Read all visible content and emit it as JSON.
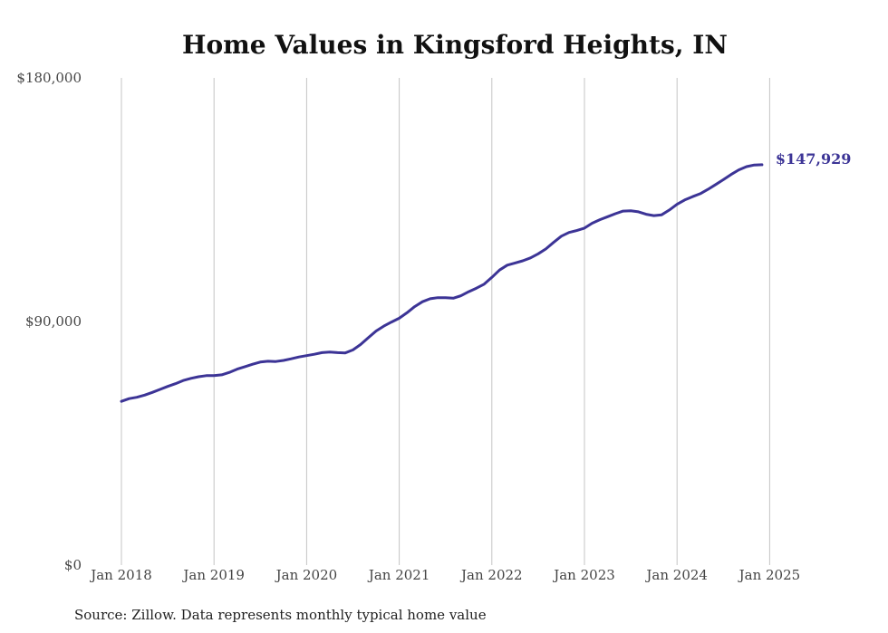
{
  "chart_data": {
    "type": "line",
    "title": "Home Values in Kingsford Heights, IN",
    "xlabel": "",
    "ylabel": "",
    "ylim": [
      0,
      180000
    ],
    "yticks": [
      {
        "value": 0,
        "label": "$0"
      },
      {
        "value": 90000,
        "label": "$90,000"
      },
      {
        "value": 180000,
        "label": "$180,000"
      }
    ],
    "xlim": [
      "2018-01",
      "2025-04"
    ],
    "xticks": [
      {
        "value": "2018-01",
        "label": "Jan 2018"
      },
      {
        "value": "2019-01",
        "label": "Jan 2019"
      },
      {
        "value": "2020-01",
        "label": "Jan 2020"
      },
      {
        "value": "2021-01",
        "label": "Jan 2021"
      },
      {
        "value": "2022-01",
        "label": "Jan 2022"
      },
      {
        "value": "2023-01",
        "label": "Jan 2023"
      },
      {
        "value": "2024-01",
        "label": "Jan 2024"
      },
      {
        "value": "2025-01",
        "label": "Jan 2025"
      }
    ],
    "grid": {
      "vertical": true,
      "horizontal": false
    },
    "line_color": "#3c3496",
    "end_label": "$147,929",
    "series": [
      {
        "points": [
          [
            "2018-01",
            60500
          ],
          [
            "2018-02",
            61500
          ],
          [
            "2018-03",
            62000
          ],
          [
            "2018-04",
            62800
          ],
          [
            "2018-05",
            63800
          ],
          [
            "2018-06",
            64900
          ],
          [
            "2018-07",
            66000
          ],
          [
            "2018-08",
            67000
          ],
          [
            "2018-09",
            68200
          ],
          [
            "2018-10",
            69000
          ],
          [
            "2018-11",
            69600
          ],
          [
            "2018-12",
            70000
          ],
          [
            "2019-01",
            70000
          ],
          [
            "2019-02",
            70300
          ],
          [
            "2019-03",
            71200
          ],
          [
            "2019-04",
            72400
          ],
          [
            "2019-05",
            73300
          ],
          [
            "2019-06",
            74200
          ],
          [
            "2019-07",
            75000
          ],
          [
            "2019-08",
            75300
          ],
          [
            "2019-09",
            75200
          ],
          [
            "2019-10",
            75600
          ],
          [
            "2019-11",
            76200
          ],
          [
            "2019-12",
            76900
          ],
          [
            "2020-01",
            77400
          ],
          [
            "2020-02",
            77900
          ],
          [
            "2020-03",
            78500
          ],
          [
            "2020-04",
            78700
          ],
          [
            "2020-05",
            78500
          ],
          [
            "2020-06",
            78400
          ],
          [
            "2020-07",
            79500
          ],
          [
            "2020-08",
            81500
          ],
          [
            "2020-09",
            84000
          ],
          [
            "2020-10",
            86500
          ],
          [
            "2020-11",
            88300
          ],
          [
            "2020-12",
            89800
          ],
          [
            "2021-01",
            91200
          ],
          [
            "2021-02",
            93200
          ],
          [
            "2021-03",
            95500
          ],
          [
            "2021-04",
            97300
          ],
          [
            "2021-05",
            98400
          ],
          [
            "2021-06",
            98800
          ],
          [
            "2021-07",
            98800
          ],
          [
            "2021-08",
            98600
          ],
          [
            "2021-09",
            99500
          ],
          [
            "2021-10",
            101000
          ],
          [
            "2021-11",
            102300
          ],
          [
            "2021-12",
            103800
          ],
          [
            "2022-01",
            106300
          ],
          [
            "2022-02",
            109000
          ],
          [
            "2022-03",
            110800
          ],
          [
            "2022-04",
            111600
          ],
          [
            "2022-05",
            112400
          ],
          [
            "2022-06",
            113500
          ],
          [
            "2022-07",
            115000
          ],
          [
            "2022-08",
            116800
          ],
          [
            "2022-09",
            119200
          ],
          [
            "2022-10",
            121500
          ],
          [
            "2022-11",
            122900
          ],
          [
            "2022-12",
            123600
          ],
          [
            "2023-01",
            124500
          ],
          [
            "2023-02",
            126300
          ],
          [
            "2023-03",
            127600
          ],
          [
            "2023-04",
            128700
          ],
          [
            "2023-05",
            129800
          ],
          [
            "2023-06",
            130800
          ],
          [
            "2023-07",
            130900
          ],
          [
            "2023-08",
            130500
          ],
          [
            "2023-09",
            129600
          ],
          [
            "2023-10",
            129100
          ],
          [
            "2023-11",
            129400
          ],
          [
            "2023-12",
            131200
          ],
          [
            "2024-01",
            133300
          ],
          [
            "2024-02",
            134900
          ],
          [
            "2024-03",
            136100
          ],
          [
            "2024-04",
            137200
          ],
          [
            "2024-05",
            138800
          ],
          [
            "2024-06",
            140600
          ],
          [
            "2024-07",
            142400
          ],
          [
            "2024-08",
            144300
          ],
          [
            "2024-09",
            146000
          ],
          [
            "2024-10",
            147200
          ],
          [
            "2024-11",
            147800
          ],
          [
            "2024-12",
            147929
          ]
        ]
      }
    ]
  },
  "source_note": "Source: Zillow. Data represents monthly typical home value"
}
